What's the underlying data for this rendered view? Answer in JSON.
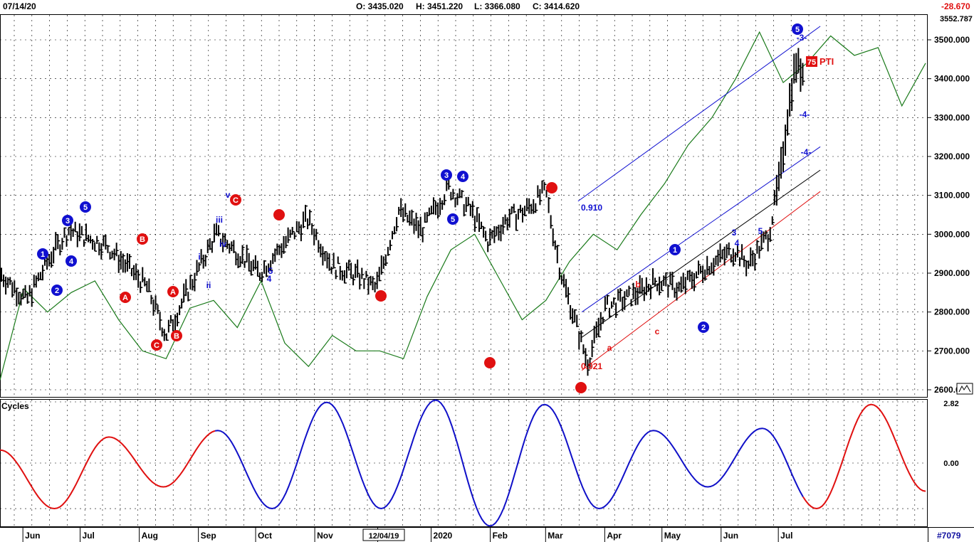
{
  "header": {
    "date": "07/14/20",
    "open": "O: 3435.020",
    "high": "H: 3451.220",
    "low": "L: 3366.080",
    "close": "C: 3414.620",
    "change": "-28.670"
  },
  "colors": {
    "bars": "#000000",
    "wave_blue": "#1010d0",
    "wave_red": "#e01010",
    "oscillator": "#1a7a1a",
    "cycle_blue": "#1010c8",
    "cycle_red": "#e01010",
    "grid": "#000000"
  },
  "price_panel": {
    "axis_top_label": "3552.787",
    "pti_value": "75",
    "pti_label": "PTI"
  },
  "cycles_panel": {
    "title": "Cycles",
    "top_value": "2.82",
    "zero_value": "0.00"
  },
  "footer": {
    "bar_count": "#7079",
    "cursor_date": "12/04/19"
  },
  "chart_data": [
    {
      "type": "ohlc-bar",
      "x_axis": {
        "type": "date",
        "tick_labels": [
          "Jun",
          "Jul",
          "Aug",
          "Sep",
          "Oct",
          "Nov",
          "12/04/19",
          "2020",
          "Feb",
          "Mar",
          "Apr",
          "May",
          "Jun",
          "Jul"
        ]
      },
      "y_axis": {
        "ylim": [
          2590,
          3552.787
        ],
        "tick_labels": [
          "3500.000",
          "3400.000",
          "3300.000",
          "3200.000",
          "3100.000",
          "3000.000",
          "2900.000",
          "2800.000",
          "2700.000",
          "2600.000"
        ]
      },
      "grid": true,
      "series_path": {
        "x": [
          "2019-05-20",
          "2019-06-03",
          "2019-06-17",
          "2019-06-25",
          "2019-07-05",
          "2019-07-15",
          "2019-07-25",
          "2019-08-05",
          "2019-08-15",
          "2019-08-28",
          "2019-09-10",
          "2019-09-20",
          "2019-10-03",
          "2019-10-15",
          "2019-10-28",
          "2019-11-10",
          "2019-11-25",
          "2019-12-03",
          "2019-12-15",
          "2019-12-27",
          "2020-01-10",
          "2020-01-22",
          "2020-01-31",
          "2020-02-10",
          "2020-02-19",
          "2020-03-01",
          "2020-03-09",
          "2020-03-23",
          "2020-04-01",
          "2020-04-15",
          "2020-04-28",
          "2020-05-10",
          "2020-05-25",
          "2020-06-08",
          "2020-06-15",
          "2020-06-26",
          "2020-07-02",
          "2020-07-06",
          "2020-07-10",
          "2020-07-14"
        ],
        "y": [
          2900,
          2830,
          2955,
          3010,
          2990,
          2970,
          2920,
          2865,
          2740,
          2870,
          3000,
          2960,
          2900,
          2970,
          3040,
          2920,
          2890,
          2860,
          3060,
          3010,
          3120,
          3060,
          2980,
          3040,
          3060,
          3110,
          2900,
          2670,
          2810,
          2840,
          2880,
          2860,
          2920,
          2960,
          2920,
          3000,
          3150,
          3310,
          3440,
          3414.62
        ]
      },
      "oscillator": {
        "name": "",
        "y": [
          2625,
          2860,
          2800,
          2850,
          2880,
          2780,
          2700,
          2680,
          2810,
          2830,
          2760,
          2880,
          2720,
          2660,
          2740,
          2700,
          2700,
          2680,
          2840,
          2960,
          3000,
          2890,
          2780,
          2830,
          2930,
          3000,
          2960,
          3050,
          3130,
          3230,
          3300,
          3400,
          3520,
          3390,
          3440,
          3510,
          3460,
          3480,
          3330,
          3440
        ]
      },
      "wave_labels_blue": [
        "1",
        "2",
        "3",
        "4",
        "5",
        "i",
        "ii",
        "iii",
        "iv",
        "v",
        "4",
        "5",
        "3",
        "5",
        "4",
        "1",
        "2",
        "3",
        "4",
        "5",
        "5"
      ],
      "wave_labels_red": [
        "A",
        "B",
        "C",
        "A",
        "B",
        "C",
        "a",
        "b",
        "c",
        "-3-",
        "-4-",
        "-4-"
      ],
      "annotations": [
        "0.910",
        "0.921"
      ],
      "trendlines": [
        {
          "name": "upper channel",
          "color": "blue",
          "start": [
            "2020-03-18",
            3085
          ],
          "end": [
            "2020-07-23",
            3535
          ]
        },
        {
          "name": "lower channel",
          "color": "blue",
          "start": [
            "2020-03-20",
            2800
          ],
          "end": [
            "2020-07-23",
            3225
          ]
        },
        {
          "name": "base line",
          "color": "black",
          "start": [
            "2020-03-20",
            2735
          ],
          "end": [
            "2020-07-23",
            3165
          ]
        },
        {
          "name": "support line",
          "color": "red",
          "start": [
            "2020-03-20",
            2650
          ],
          "end": [
            "2020-07-23",
            3110
          ]
        }
      ]
    },
    {
      "type": "line",
      "title": "Cycles",
      "y_axis": {
        "ylim": [
          -3.0,
          2.82
        ],
        "tick_labels": [
          "2.82",
          "0.00"
        ]
      },
      "series": [
        {
          "color": "red",
          "y": [
            0.6,
            -2.1,
            1.2,
            -1.1,
            1.5,
            -2.1,
            2.8,
            -2.1,
            2.9,
            -2.9,
            2.7,
            -2.1,
            1.5,
            -1.1,
            1.6,
            -2.1,
            2.7,
            -1.3
          ]
        }
      ]
    }
  ]
}
